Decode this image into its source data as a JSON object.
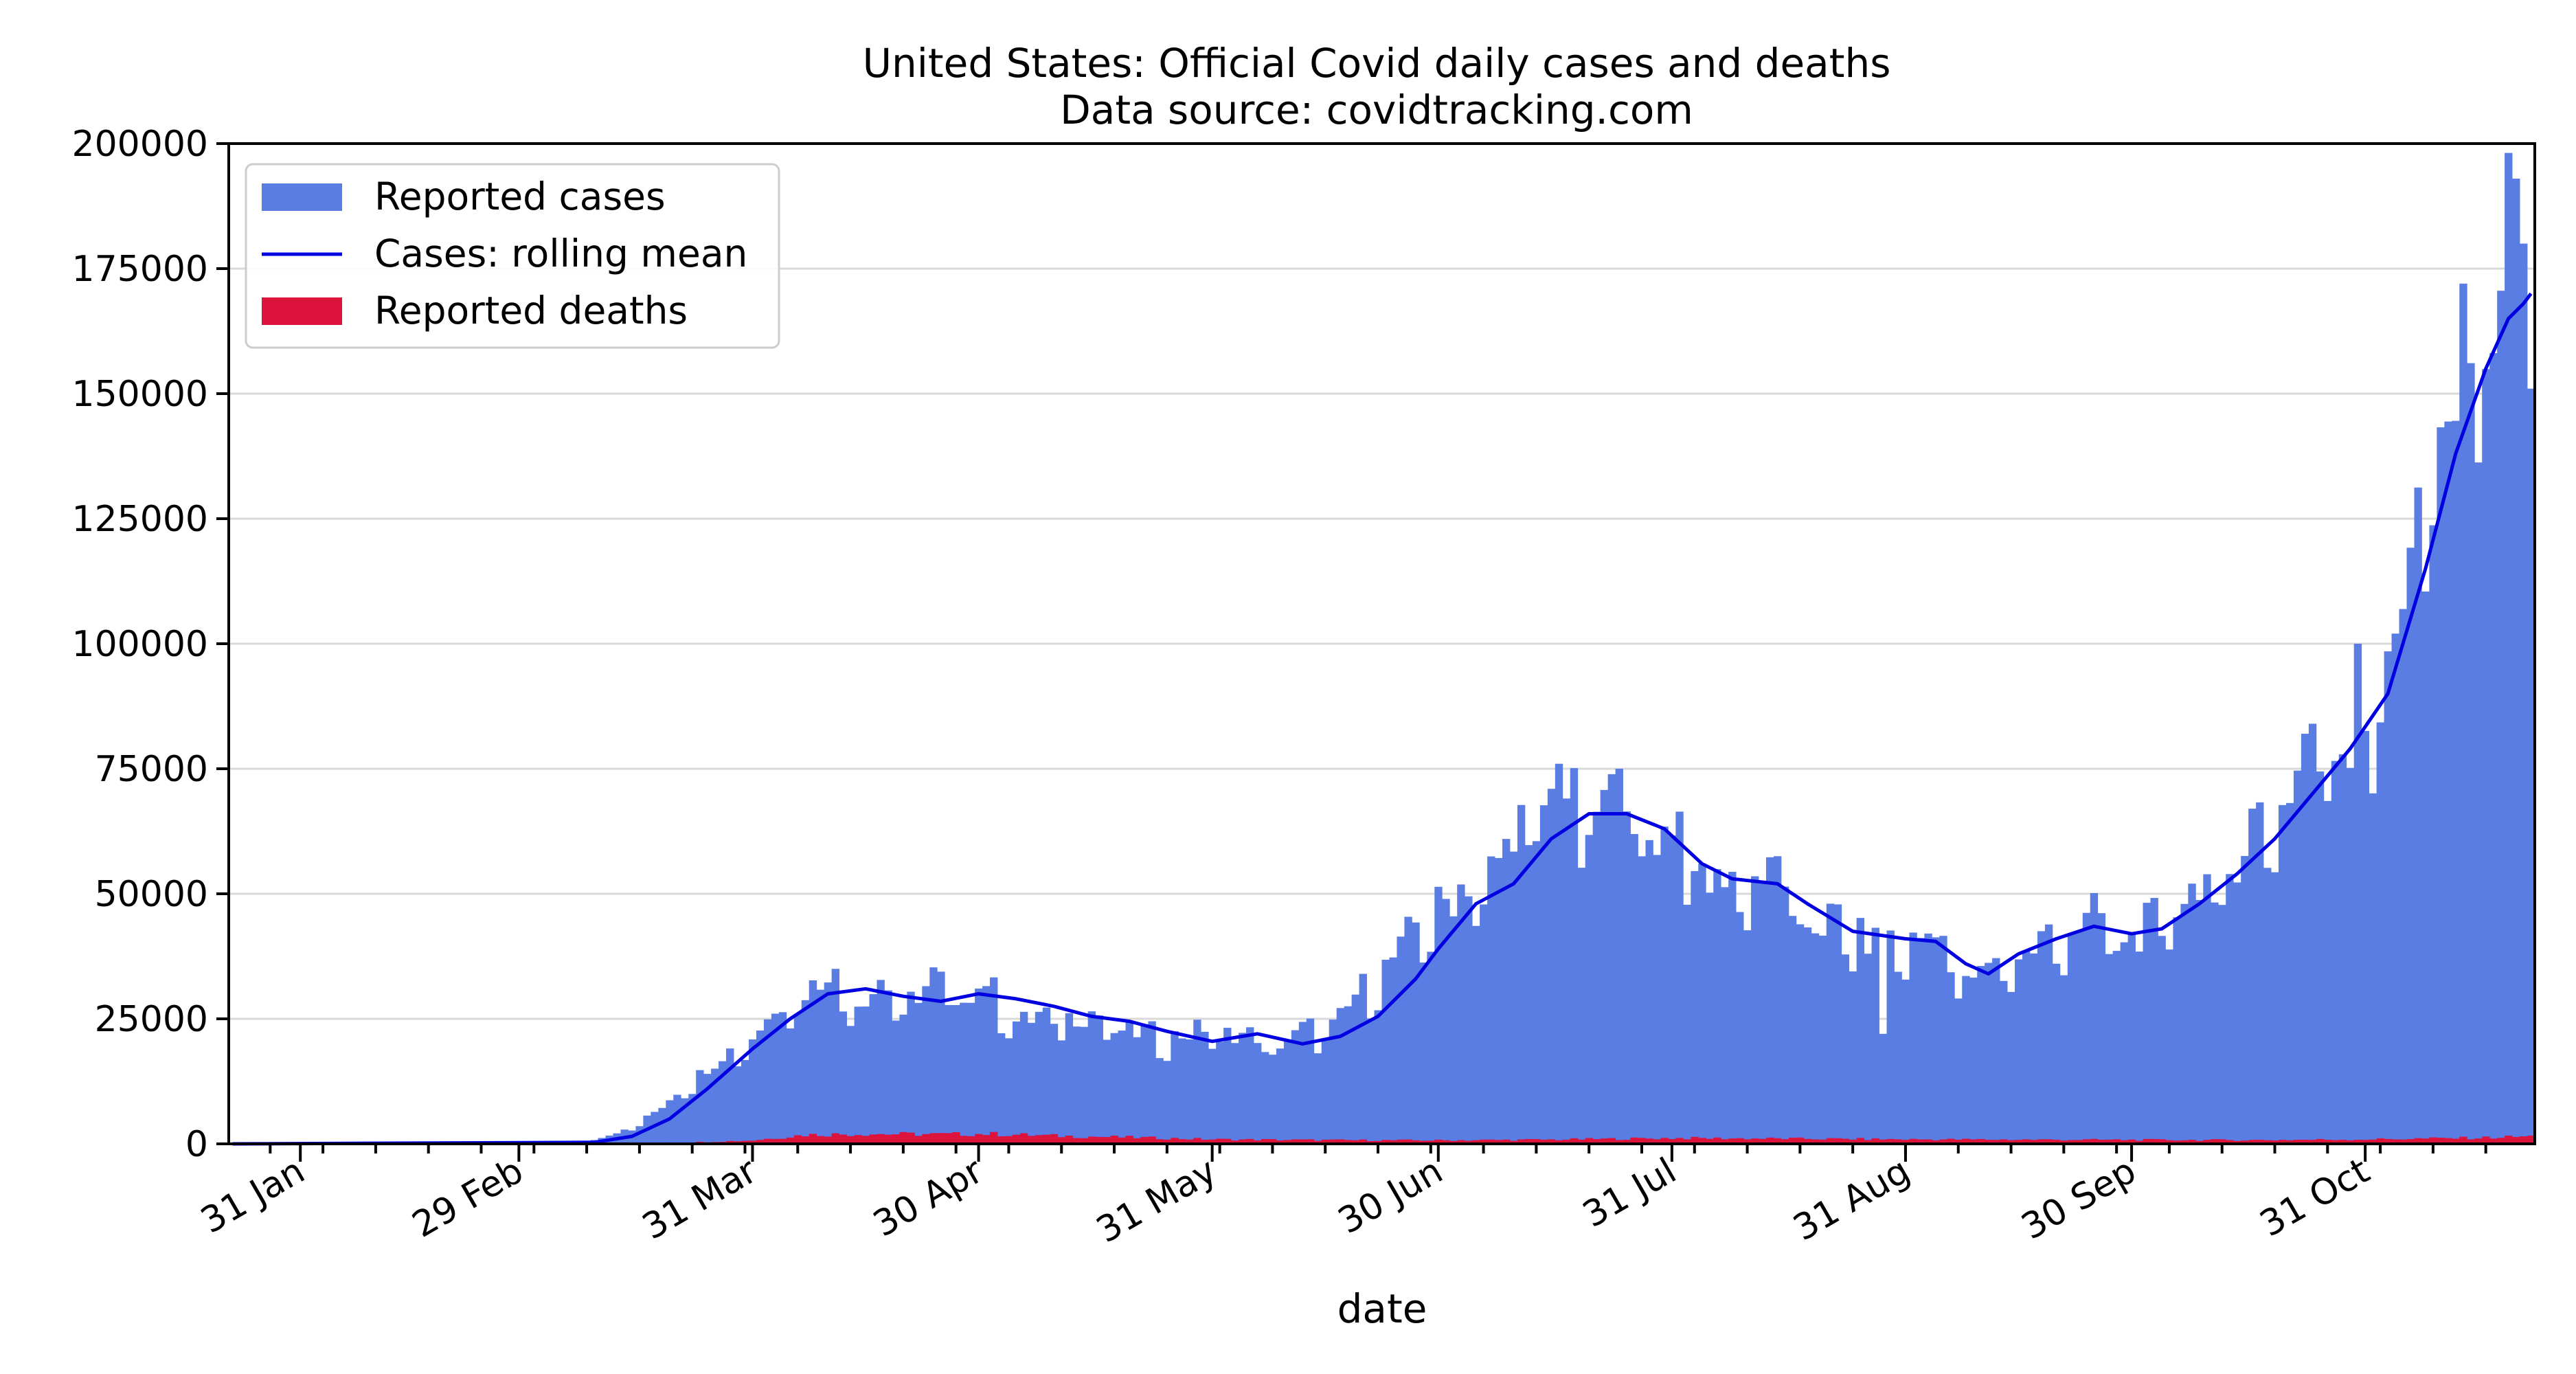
{
  "chart_data": {
    "type": "bar",
    "title": "United States: Official Covid daily cases and deaths",
    "subtitle": "Data source: covidtracking.com",
    "xlabel": "date",
    "ylabel": "",
    "ylim": [
      0,
      200000
    ],
    "xlim": [
      "2020-01-22",
      "2020-11-22"
    ],
    "grid": "horizontal",
    "legend_position": "upper-left",
    "x_ticks": [
      {
        "date": "2020-01-31",
        "label": "31 Jan"
      },
      {
        "date": "2020-02-29",
        "label": "29 Feb"
      },
      {
        "date": "2020-03-31",
        "label": "31 Mar"
      },
      {
        "date": "2020-04-30",
        "label": "30 Apr"
      },
      {
        "date": "2020-05-31",
        "label": "31 May"
      },
      {
        "date": "2020-06-30",
        "label": "30 Jun"
      },
      {
        "date": "2020-07-31",
        "label": "31 Jul"
      },
      {
        "date": "2020-08-31",
        "label": "31 Aug"
      },
      {
        "date": "2020-09-30",
        "label": "30 Sep"
      },
      {
        "date": "2020-10-31",
        "label": "31 Oct"
      }
    ],
    "y_ticks": [
      0,
      25000,
      50000,
      75000,
      100000,
      125000,
      150000,
      175000,
      200000
    ],
    "cases_anchor_points": [
      [
        "2020-01-22",
        0
      ],
      [
        "2020-02-29",
        0
      ],
      [
        "2020-03-05",
        100
      ],
      [
        "2020-03-10",
        800
      ],
      [
        "2020-03-15",
        3000
      ],
      [
        "2020-03-20",
        8500
      ],
      [
        "2020-03-25",
        15000
      ],
      [
        "2020-03-30",
        19500
      ],
      [
        "2020-04-03",
        26000
      ],
      [
        "2020-04-07",
        30000
      ],
      [
        "2020-04-10",
        33000
      ],
      [
        "2020-04-14",
        28000
      ],
      [
        "2020-04-17",
        31000
      ],
      [
        "2020-04-20",
        27000
      ],
      [
        "2020-04-24",
        32000
      ],
      [
        "2020-04-27",
        29000
      ],
      [
        "2020-05-01",
        31000
      ],
      [
        "2020-05-05",
        24000
      ],
      [
        "2020-05-10",
        25000
      ],
      [
        "2020-05-15",
        25000
      ],
      [
        "2020-05-20",
        22000
      ],
      [
        "2020-05-25",
        21000
      ],
      [
        "2020-05-30",
        22000
      ],
      [
        "2020-06-04",
        21500
      ],
      [
        "2020-06-08",
        19000
      ],
      [
        "2020-06-12",
        22000
      ],
      [
        "2020-06-16",
        23000
      ],
      [
        "2020-06-20",
        30000
      ],
      [
        "2020-06-25",
        38000
      ],
      [
        "2020-06-30",
        47000
      ],
      [
        "2020-07-05",
        50000
      ],
      [
        "2020-07-10",
        60000
      ],
      [
        "2020-07-15",
        68000
      ],
      [
        "2020-07-20",
        64000
      ],
      [
        "2020-07-24",
        70000
      ],
      [
        "2020-07-28",
        60000
      ],
      [
        "2020-08-01",
        62000
      ],
      [
        "2020-08-05",
        51000
      ],
      [
        "2020-08-10",
        52000
      ],
      [
        "2020-08-14",
        53000
      ],
      [
        "2020-08-18",
        43000
      ],
      [
        "2020-08-22",
        43000
      ],
      [
        "2020-08-26",
        40000
      ],
      [
        "2020-08-31",
        39000
      ],
      [
        "2020-09-04",
        42000
      ],
      [
        "2020-09-08",
        31000
      ],
      [
        "2020-09-12",
        36000
      ],
      [
        "2020-09-16",
        37000
      ],
      [
        "2020-09-20",
        41000
      ],
      [
        "2020-09-25",
        44000
      ],
      [
        "2020-09-30",
        40000
      ],
      [
        "2020-10-04",
        44000
      ],
      [
        "2020-10-08",
        50000
      ],
      [
        "2020-10-12",
        50000
      ],
      [
        "2020-10-16",
        62000
      ],
      [
        "2020-10-20",
        66000
      ],
      [
        "2020-10-24",
        80000
      ],
      [
        "2020-10-28",
        78000
      ],
      [
        "2020-11-01",
        82000
      ],
      [
        "2020-11-05",
        110000
      ],
      [
        "2020-11-08",
        125000
      ],
      [
        "2020-11-11",
        140000
      ],
      [
        "2020-11-14",
        160000
      ],
      [
        "2020-11-17",
        165000
      ],
      [
        "2020-11-20",
        190000
      ],
      [
        "2020-11-22",
        150000
      ]
    ],
    "cases_daily_jitter": 0.09,
    "cases_notable_days": [
      [
        "2020-07-16",
        76000
      ],
      [
        "2020-07-24",
        75000
      ],
      [
        "2020-08-28",
        22000
      ],
      [
        "2020-11-13",
        172000
      ],
      [
        "2020-11-20",
        193000
      ],
      [
        "2020-11-21",
        180000
      ],
      [
        "2020-11-22",
        151000
      ],
      [
        "2020-10-30",
        100000
      ],
      [
        "2020-10-23",
        82000
      ]
    ],
    "rolling_mean_points": [
      [
        "2020-01-22",
        0
      ],
      [
        "2020-03-10",
        300
      ],
      [
        "2020-03-15",
        1500
      ],
      [
        "2020-03-20",
        5000
      ],
      [
        "2020-03-25",
        11000
      ],
      [
        "2020-03-31",
        19000
      ],
      [
        "2020-04-05",
        25000
      ],
      [
        "2020-04-10",
        30000
      ],
      [
        "2020-04-15",
        31000
      ],
      [
        "2020-04-20",
        29500
      ],
      [
        "2020-04-25",
        28500
      ],
      [
        "2020-04-30",
        30000
      ],
      [
        "2020-05-05",
        29000
      ],
      [
        "2020-05-10",
        27500
      ],
      [
        "2020-05-15",
        25500
      ],
      [
        "2020-05-20",
        24500
      ],
      [
        "2020-05-25",
        22500
      ],
      [
        "2020-05-31",
        20500
      ],
      [
        "2020-06-06",
        22000
      ],
      [
        "2020-06-12",
        20000
      ],
      [
        "2020-06-17",
        21500
      ],
      [
        "2020-06-22",
        25500
      ],
      [
        "2020-06-27",
        33000
      ],
      [
        "2020-06-30",
        39000
      ],
      [
        "2020-07-05",
        48000
      ],
      [
        "2020-07-10",
        52000
      ],
      [
        "2020-07-15",
        61000
      ],
      [
        "2020-07-20",
        66000
      ],
      [
        "2020-07-25",
        66000
      ],
      [
        "2020-07-30",
        63000
      ],
      [
        "2020-08-04",
        56000
      ],
      [
        "2020-08-08",
        53000
      ],
      [
        "2020-08-14",
        52000
      ],
      [
        "2020-08-18",
        48000
      ],
      [
        "2020-08-24",
        42500
      ],
      [
        "2020-08-31",
        41000
      ],
      [
        "2020-09-04",
        40500
      ],
      [
        "2020-09-08",
        36000
      ],
      [
        "2020-09-11",
        34000
      ],
      [
        "2020-09-15",
        38000
      ],
      [
        "2020-09-20",
        41000
      ],
      [
        "2020-09-25",
        43500
      ],
      [
        "2020-09-30",
        42000
      ],
      [
        "2020-10-04",
        43000
      ],
      [
        "2020-10-09",
        48000
      ],
      [
        "2020-10-14",
        54000
      ],
      [
        "2020-10-19",
        61000
      ],
      [
        "2020-10-24",
        70000
      ],
      [
        "2020-10-29",
        79000
      ],
      [
        "2020-11-03",
        90000
      ],
      [
        "2020-11-08",
        115000
      ],
      [
        "2020-11-12",
        138000
      ],
      [
        "2020-11-16",
        155000
      ],
      [
        "2020-11-19",
        165000
      ],
      [
        "2020-11-21",
        168000
      ],
      [
        "2020-11-22",
        170000
      ]
    ],
    "deaths_anchor_points": [
      [
        "2020-01-22",
        0
      ],
      [
        "2020-03-15",
        20
      ],
      [
        "2020-03-25",
        400
      ],
      [
        "2020-03-31",
        700
      ],
      [
        "2020-04-07",
        1800
      ],
      [
        "2020-04-15",
        2000
      ],
      [
        "2020-04-25",
        1900
      ],
      [
        "2020-05-01",
        2000
      ],
      [
        "2020-05-10",
        1600
      ],
      [
        "2020-05-20",
        1300
      ],
      [
        "2020-05-31",
        900
      ],
      [
        "2020-06-15",
        750
      ],
      [
        "2020-06-30",
        700
      ],
      [
        "2020-07-15",
        850
      ],
      [
        "2020-07-31",
        1150
      ],
      [
        "2020-08-15",
        1050
      ],
      [
        "2020-08-31",
        900
      ],
      [
        "2020-09-15",
        850
      ],
      [
        "2020-09-30",
        800
      ],
      [
        "2020-10-15",
        750
      ],
      [
        "2020-10-31",
        900
      ],
      [
        "2020-11-15",
        1200
      ],
      [
        "2020-11-22",
        1500
      ]
    ],
    "legend": [
      {
        "label": "Reported cases",
        "kind": "patch",
        "color": "#5a7de3"
      },
      {
        "label": "Cases: rolling mean",
        "kind": "line",
        "color": "#0000e0"
      },
      {
        "label": "Reported deaths",
        "kind": "patch",
        "color": "#dc143c"
      }
    ]
  }
}
